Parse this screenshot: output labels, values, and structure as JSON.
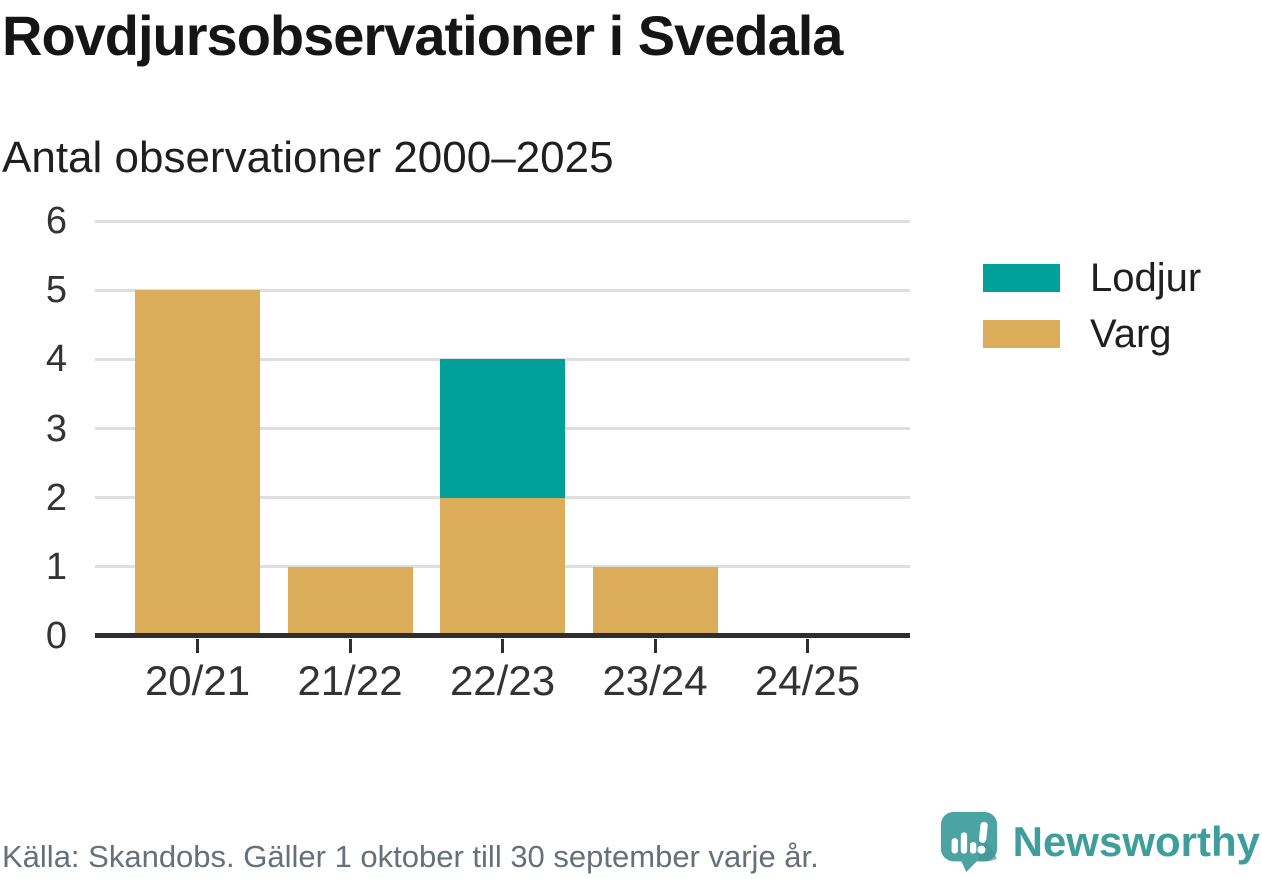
{
  "header": {
    "title": "Rovdjursobservationer i Svedala",
    "subtitle": "Antal observationer 2000–2025"
  },
  "chart_data": {
    "type": "bar",
    "stacked": true,
    "title": "Rovdjursobservationer i Svedala",
    "subtitle": "Antal observationer 2000–2025",
    "xlabel": "",
    "ylabel": "",
    "categories": [
      "20/21",
      "21/22",
      "22/23",
      "23/24",
      "24/25"
    ],
    "series": [
      {
        "name": "Lodjur",
        "color": "#00A09A",
        "values": [
          0,
          0,
          2,
          0,
          0
        ]
      },
      {
        "name": "Varg",
        "color": "#DBAD5A",
        "values": [
          5,
          1,
          2,
          1,
          0
        ]
      }
    ],
    "stack_bottom_to_top": [
      "Varg",
      "Lodjur"
    ],
    "ylim": [
      0,
      6
    ],
    "yticks": [
      0,
      1,
      2,
      3,
      4,
      5,
      6
    ],
    "grid": true,
    "legend_position": "right"
  },
  "footer": {
    "source": "Källa: Skandobs. Gäller 1 oktober till 30 september varje år.",
    "brand": "Newsworthy"
  },
  "colors": {
    "lodjur_teal": "#00A09A",
    "varg_gold": "#DBAD5A",
    "axis": "#2E2E2E",
    "gridline": "#DEDEDE",
    "brand_teal": "#3F9E9B",
    "logo_bubble": "#4BA3A2",
    "text_dark": "#151515",
    "text_gray": "#66707A"
  }
}
